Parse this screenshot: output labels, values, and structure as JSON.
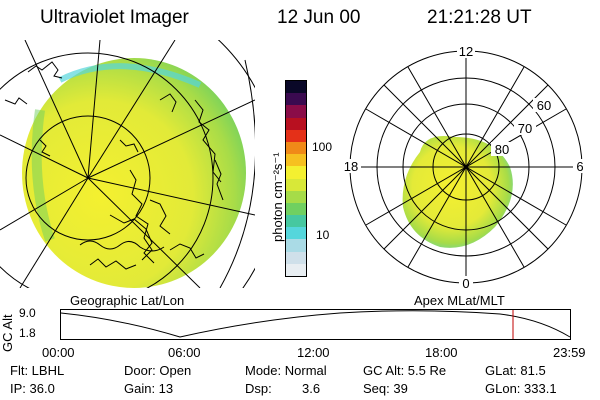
{
  "header": {
    "title": "Ultraviolet Imager",
    "date": "12 Jun 00",
    "time": "21:21:28 UT"
  },
  "colorbar": {
    "unit_label": "photon cm⁻²s⁻¹",
    "tick_100": "100",
    "tick_10": "10",
    "colors": [
      "#e8eef2",
      "#cfe0ea",
      "#aadbe6",
      "#55d6dc",
      "#46c8a0",
      "#70d060",
      "#a6dc48",
      "#d8e838",
      "#f4f030",
      "#f6c020",
      "#f08a18",
      "#e43018",
      "#b81020",
      "#8a0c48",
      "#3a0a50",
      "#0a0828"
    ]
  },
  "polar": {
    "mlt_12": "12",
    "mlt_18": "18",
    "mlt_6": "6",
    "mlt_0": "0",
    "lat_60": "60",
    "lat_70": "70",
    "lat_80": "80"
  },
  "panels": {
    "left_label": "Geographic Lat/Lon",
    "right_label": "Apex MLat/MLT"
  },
  "altitude_plot": {
    "axis_label": "GC Alt",
    "y_max": "9.0",
    "y_min": "1.8",
    "x_ticks": [
      "00:00",
      "06:00",
      "12:00",
      "18:00",
      "23:59"
    ],
    "marker_time": "21:21"
  },
  "info": {
    "filter": "Flt: LBHL",
    "ip": "IP: 36.0",
    "door": "Door: Open",
    "gain": "Gain: 13",
    "mode": "Mode: Normal",
    "dsp_label": "Dsp:",
    "dsp_value": "3.6",
    "gc_alt": "GC Alt: 5.5 Re",
    "seq": "Seq: 39",
    "glat": "GLat: 81.5",
    "glon": "GLon: 333.1"
  }
}
